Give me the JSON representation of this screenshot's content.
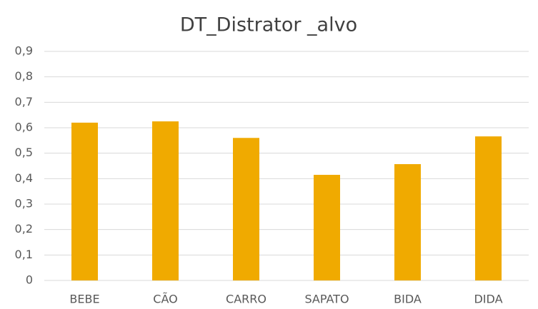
{
  "chart_data": {
    "type": "bar",
    "title": "DT_Distrator _alvo",
    "categories": [
      "BEBE",
      "CÃO",
      "CARRO",
      "SAPATO",
      "BIDA",
      "DIDA"
    ],
    "values": [
      0.62,
      0.625,
      0.56,
      0.415,
      0.457,
      0.566
    ],
    "color": "#f0aa00",
    "ylim": [
      0,
      0.9
    ],
    "yticks": [
      0,
      {
        "value": 0.1,
        "label": "0,1"
      },
      {
        "value": 0.2,
        "label": "0,2"
      },
      {
        "value": 0.3,
        "label": "0,3"
      },
      {
        "value": 0.4,
        "label": "0,4"
      },
      {
        "value": 0.5,
        "label": "0,5"
      },
      {
        "value": 0.6,
        "label": "0,6"
      },
      {
        "value": 0.7,
        "label": "0,7"
      },
      {
        "value": 0.8,
        "label": "0,8"
      },
      {
        "value": 0.9,
        "label": "0,9"
      }
    ],
    "grid": true
  }
}
